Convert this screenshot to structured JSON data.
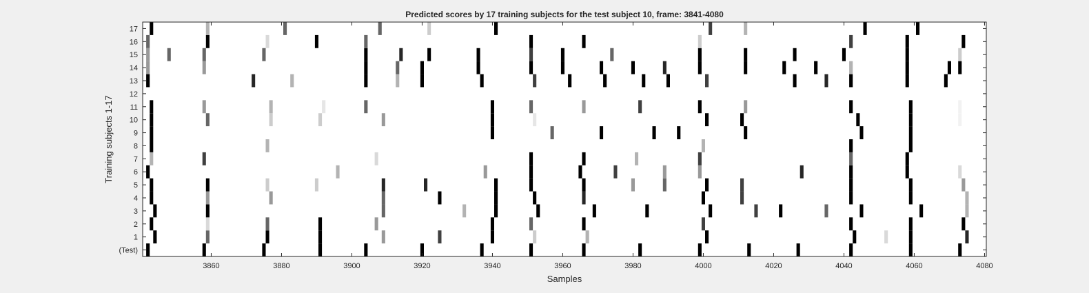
{
  "chart_data": {
    "type": "heatmap",
    "title": "Predicted scores by 17 training subjects for the test subject 10, frame: 3841-4080",
    "xlabel": "Samples",
    "ylabel": "Training subjects 1-17",
    "xlim": [
      3841,
      4080
    ],
    "xticks": [
      3860,
      3880,
      3900,
      3920,
      3940,
      3960,
      3980,
      4000,
      4020,
      4040,
      4060,
      4080
    ],
    "rows": [
      "(Test)",
      "1",
      "2",
      "3",
      "4",
      "5",
      "6",
      "7",
      "8",
      "9",
      "10",
      "11",
      "12",
      "13",
      "14",
      "15",
      "16",
      "17"
    ],
    "colormap": "white-to-black",
    "score_range": [
      0,
      1
    ],
    "marks": [
      {
        "row": "(Test)",
        "points": [
          [
            3842,
            1
          ],
          [
            3858,
            1
          ],
          [
            3875,
            1
          ],
          [
            3891,
            1
          ],
          [
            3904,
            1
          ],
          [
            3920,
            1
          ],
          [
            3937,
            1
          ],
          [
            3951,
            1
          ],
          [
            3966,
            1
          ],
          [
            3982,
            1
          ],
          [
            3999,
            1
          ],
          [
            4013,
            1
          ],
          [
            4027,
            1
          ],
          [
            4042,
            1
          ],
          [
            4059,
            1
          ],
          [
            4073,
            1
          ]
        ]
      },
      {
        "row": "1",
        "points": [
          [
            3844,
            1
          ],
          [
            3859,
            0.6
          ],
          [
            3876,
            1
          ],
          [
            3891,
            1
          ],
          [
            3909,
            0.4
          ],
          [
            3925,
            0.75
          ],
          [
            3940,
            1
          ],
          [
            3952,
            0.2
          ],
          [
            3967,
            0.3
          ],
          [
            4001,
            1
          ],
          [
            4043,
            1
          ],
          [
            4052,
            0.15
          ],
          [
            4059,
            1
          ],
          [
            4075,
            0.85
          ]
        ]
      },
      {
        "row": "2",
        "points": [
          [
            3843,
            1
          ],
          [
            3859,
            0.15
          ],
          [
            3876,
            0.6
          ],
          [
            3891,
            1
          ],
          [
            3907,
            0.4
          ],
          [
            3940,
            1
          ],
          [
            3951,
            0.6
          ],
          [
            3966,
            1
          ],
          [
            4000,
            0.75
          ],
          [
            4042,
            1
          ],
          [
            4059,
            1
          ],
          [
            4074,
            1
          ]
        ]
      },
      {
        "row": "3",
        "points": [
          [
            3844,
            1
          ],
          [
            3859,
            1
          ],
          [
            3909,
            0.6
          ],
          [
            3932,
            0.3
          ],
          [
            3941,
            1
          ],
          [
            3953,
            1
          ],
          [
            3969,
            1
          ],
          [
            3984,
            1
          ],
          [
            4002,
            1
          ],
          [
            4015,
            0.75
          ],
          [
            4022,
            1
          ],
          [
            4035,
            0.6
          ],
          [
            4045,
            1
          ],
          [
            4062,
            1
          ],
          [
            4075,
            0.3
          ]
        ]
      },
      {
        "row": "4",
        "points": [
          [
            3843,
            1
          ],
          [
            3859,
            0.4
          ],
          [
            3877,
            0.4
          ],
          [
            3909,
            0.6
          ],
          [
            3925,
            1
          ],
          [
            3941,
            1
          ],
          [
            3952,
            1
          ],
          [
            3966,
            0.85
          ],
          [
            4000,
            1
          ],
          [
            4011,
            0.75
          ],
          [
            4042,
            1
          ],
          [
            4059,
            1
          ],
          [
            4075,
            0.3
          ]
        ]
      },
      {
        "row": "5",
        "points": [
          [
            3843,
            1
          ],
          [
            3859,
            1
          ],
          [
            3876,
            0.2
          ],
          [
            3890,
            0.2
          ],
          [
            3909,
            0.85
          ],
          [
            3921,
            0.85
          ],
          [
            3941,
            1
          ],
          [
            3951,
            1
          ],
          [
            3966,
            1
          ],
          [
            3980,
            0.4
          ],
          [
            3989,
            0.6
          ],
          [
            4001,
            1
          ],
          [
            4011,
            0.75
          ],
          [
            4042,
            1
          ],
          [
            4059,
            1
          ],
          [
            4074,
            0.4
          ]
        ]
      },
      {
        "row": "6",
        "points": [
          [
            3842,
            1
          ],
          [
            3896,
            0.3
          ],
          [
            3938,
            0.4
          ],
          [
            3951,
            1
          ],
          [
            3965,
            1
          ],
          [
            3975,
            0.75
          ],
          [
            3989,
            0.4
          ],
          [
            3999,
            0.4
          ],
          [
            4028,
            0.85
          ],
          [
            4042,
            1
          ],
          [
            4058,
            1
          ],
          [
            4073,
            0.15
          ]
        ]
      },
      {
        "row": "7",
        "points": [
          [
            3843,
            0.3
          ],
          [
            3858,
            0.75
          ],
          [
            3907,
            0.15
          ],
          [
            3951,
            1
          ],
          [
            3966,
            1
          ],
          [
            3981,
            0.3
          ],
          [
            3999,
            0.75
          ],
          [
            4042,
            0.6
          ],
          [
            4058,
            1
          ]
        ]
      },
      {
        "row": "8",
        "points": [
          [
            3843,
            1
          ],
          [
            3876,
            0.3
          ],
          [
            4000,
            0.3
          ],
          [
            4042,
            1
          ],
          [
            4059,
            1
          ]
        ]
      },
      {
        "row": "9",
        "points": [
          [
            3843,
            1
          ],
          [
            3940,
            1
          ],
          [
            3957,
            0.6
          ],
          [
            3971,
            1
          ],
          [
            3986,
            1
          ],
          [
            3993,
            1
          ],
          [
            4012,
            1
          ],
          [
            4045,
            1
          ],
          [
            4059,
            1
          ]
        ]
      },
      {
        "row": "10",
        "points": [
          [
            3843,
            1
          ],
          [
            3859,
            0.6
          ],
          [
            3877,
            0.2
          ],
          [
            3891,
            0.2
          ],
          [
            3909,
            0.4
          ],
          [
            3940,
            1
          ],
          [
            3952,
            0.1
          ],
          [
            4001,
            1
          ],
          [
            4011,
            1
          ],
          [
            4044,
            1
          ],
          [
            4059,
            1
          ],
          [
            4073,
            0.05
          ]
        ]
      },
      {
        "row": "11",
        "points": [
          [
            3843,
            1
          ],
          [
            3858,
            0.4
          ],
          [
            3877,
            0.3
          ],
          [
            3892,
            0.1
          ],
          [
            3904,
            0.6
          ],
          [
            3940,
            1
          ],
          [
            3951,
            0.6
          ],
          [
            3966,
            0.4
          ],
          [
            3982,
            0.75
          ],
          [
            3999,
            1
          ],
          [
            4012,
            0.4
          ],
          [
            4042,
            1
          ],
          [
            4059,
            1
          ],
          [
            4073,
            0.05
          ]
        ]
      },
      {
        "row": "12",
        "points": []
      },
      {
        "row": "13",
        "points": [
          [
            3842,
            1
          ],
          [
            3872,
            0.85
          ],
          [
            3883,
            0.3
          ],
          [
            3904,
            1
          ],
          [
            3913,
            0.3
          ],
          [
            3920,
            1
          ],
          [
            3937,
            1
          ],
          [
            3952,
            0.75
          ],
          [
            3962,
            1
          ],
          [
            3972,
            1
          ],
          [
            3983,
            1
          ],
          [
            3990,
            1
          ],
          [
            4001,
            0.75
          ],
          [
            4026,
            1
          ],
          [
            4035,
            0.85
          ],
          [
            4042,
            1
          ],
          [
            4058,
            1
          ],
          [
            4069,
            1
          ]
        ]
      },
      {
        "row": "14",
        "points": [
          [
            3842,
            0.4
          ],
          [
            3858,
            0.4
          ],
          [
            3904,
            1
          ],
          [
            3913,
            0.6
          ],
          [
            3920,
            1
          ],
          [
            3936,
            1
          ],
          [
            3951,
            1
          ],
          [
            3960,
            1
          ],
          [
            3971,
            1
          ],
          [
            3980,
            1
          ],
          [
            3989,
            0.85
          ],
          [
            3999,
            1
          ],
          [
            4012,
            1
          ],
          [
            4023,
            1
          ],
          [
            4032,
            1
          ],
          [
            4042,
            0.3
          ],
          [
            4058,
            1
          ],
          [
            4070,
            1
          ],
          [
            4073,
            1
          ]
        ]
      },
      {
        "row": "15",
        "points": [
          [
            3842,
            0.4
          ],
          [
            3848,
            0.6
          ],
          [
            3858,
            0.6
          ],
          [
            3875,
            0.6
          ],
          [
            3904,
            1
          ],
          [
            3914,
            0.85
          ],
          [
            3922,
            1
          ],
          [
            3936,
            1
          ],
          [
            3951,
            0.75
          ],
          [
            3960,
            1
          ],
          [
            3974,
            0.6
          ],
          [
            3999,
            1
          ],
          [
            4012,
            1
          ],
          [
            4026,
            1
          ],
          [
            4040,
            1
          ],
          [
            4058,
            1
          ],
          [
            4073,
            0.2
          ]
        ]
      },
      {
        "row": "16",
        "points": [
          [
            3842,
            0.6
          ],
          [
            3859,
            1
          ],
          [
            3876,
            0.15
          ],
          [
            3890,
            1
          ],
          [
            3904,
            0.6
          ],
          [
            3951,
            1
          ],
          [
            3966,
            1
          ],
          [
            3999,
            0.2
          ],
          [
            4042,
            0.75
          ],
          [
            4058,
            1
          ],
          [
            4074,
            1
          ]
        ]
      },
      {
        "row": "17",
        "points": [
          [
            3843,
            1
          ],
          [
            3859,
            0.3
          ],
          [
            3881,
            0.6
          ],
          [
            3908,
            0.6
          ],
          [
            3922,
            0.2
          ],
          [
            3941,
            1
          ],
          [
            4002,
            0.75
          ],
          [
            4012,
            0.3
          ],
          [
            4046,
            1
          ],
          [
            4061,
            1
          ]
        ]
      }
    ]
  }
}
